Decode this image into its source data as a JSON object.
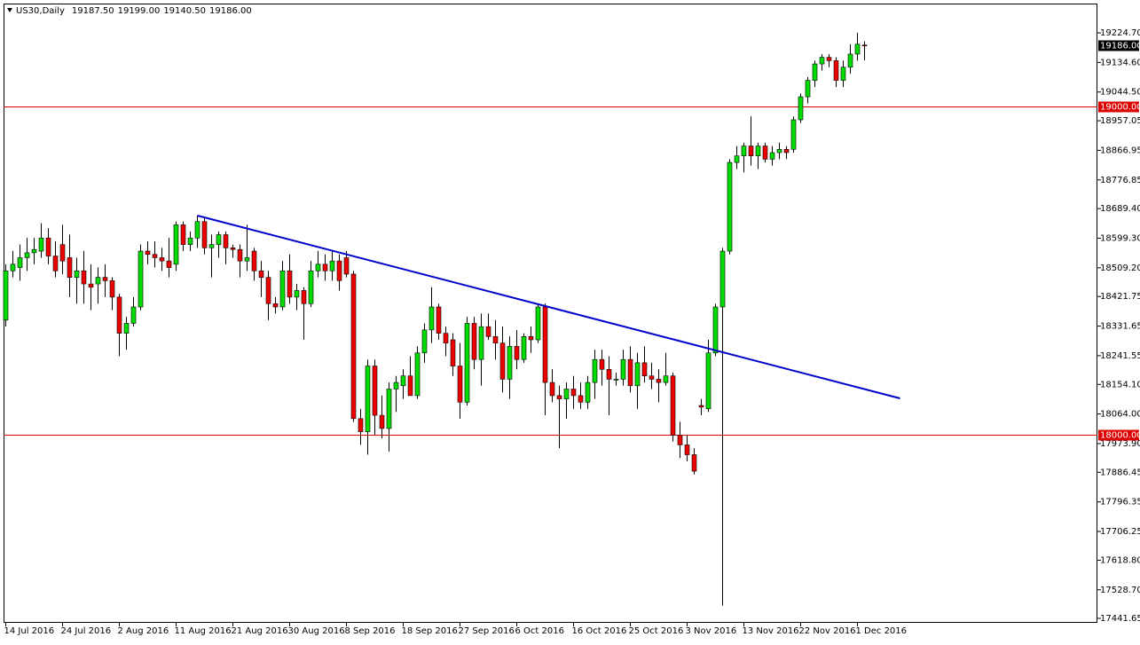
{
  "chart_data": {
    "type": "candlestick",
    "title": "US30,Daily",
    "header": {
      "values": [
        19187.5,
        19199,
        19140.5,
        19186
      ],
      "value_labels": [
        "19187.50",
        "19199.00",
        "19140.50",
        "19186.00"
      ]
    },
    "categories": [
      "14 Jul 2016",
      null,
      null,
      null,
      null,
      null,
      null,
      null,
      "24 Jul 2016",
      null,
      null,
      null,
      null,
      null,
      null,
      null,
      "2 Aug 2016",
      null,
      null,
      null,
      null,
      null,
      null,
      null,
      "11 Aug 2016",
      null,
      null,
      null,
      null,
      null,
      null,
      null,
      "21 Aug 2016",
      null,
      null,
      null,
      null,
      null,
      null,
      null,
      "30 Aug 2016",
      null,
      null,
      null,
      null,
      null,
      null,
      null,
      "8 Sep 2016",
      null,
      null,
      null,
      null,
      null,
      null,
      null,
      "18 Sep 2016",
      null,
      null,
      null,
      null,
      null,
      null,
      null,
      "27 Sep 2016",
      null,
      null,
      null,
      null,
      null,
      null,
      null,
      "6 Oct 2016",
      null,
      null,
      null,
      null,
      null,
      null,
      null,
      "16 Oct 2016",
      null,
      null,
      null,
      null,
      null,
      null,
      null,
      "25 Oct 2016",
      null,
      null,
      null,
      null,
      null,
      null,
      null,
      "3 Nov 2016",
      null,
      null,
      null,
      null,
      null,
      null,
      null,
      "13 Nov 2016",
      null,
      null,
      null,
      null,
      null,
      null,
      null,
      "22 Nov 2016",
      null,
      null,
      null,
      null,
      null,
      null,
      null,
      "1 Dec 2016",
      null
    ],
    "open": [
      18350,
      18500,
      18510,
      18540,
      18555,
      18560,
      18600,
      18545,
      18580,
      18540,
      18480,
      18500,
      18460,
      18460,
      18480,
      18470,
      18420,
      18310,
      18340,
      18390,
      18560,
      18550,
      18540,
      18530,
      18520,
      18640,
      18580,
      18600,
      18650,
      18570,
      18580,
      18610,
      18570,
      18565,
      18530,
      18560,
      18500,
      18480,
      18400,
      18390,
      18500,
      18420,
      18440,
      18400,
      18500,
      18520,
      18500,
      18530,
      18540,
      18490,
      18050,
      18010,
      18210,
      18060,
      18020,
      18140,
      18150,
      18180,
      18120,
      18250,
      18320,
      18390,
      18310,
      18290,
      18210,
      18100,
      18340,
      18230,
      18330,
      18300,
      18280,
      18170,
      18270,
      18230,
      18300,
      18290,
      18390,
      18160,
      18120,
      18110,
      18140,
      18120,
      18100,
      18160,
      18230,
      18200,
      18170,
      18170,
      18230,
      18150,
      18220,
      18180,
      18170,
      18160,
      18180,
      18000,
      17970,
      17940,
      18090,
      18080,
      18250,
      18390,
      18560,
      18830,
      18850,
      18880,
      18850,
      18880,
      18840,
      18860,
      18870,
      18870,
      18960,
      19030,
      19080,
      19130,
      19150,
      19140,
      19080,
      19120,
      19160,
      19187.5
    ],
    "high": [
      18520,
      18560,
      18580,
      18600,
      18600,
      18645,
      18630,
      18590,
      18640,
      18610,
      18540,
      18560,
      18520,
      18510,
      18520,
      18480,
      18430,
      18360,
      18420,
      18580,
      18590,
      18590,
      18570,
      18600,
      18650,
      18650,
      18620,
      18668,
      18660,
      18610,
      18620,
      18620,
      18580,
      18580,
      18640,
      18570,
      18530,
      18500,
      18420,
      18530,
      18550,
      18460,
      18450,
      18530,
      18560,
      18550,
      18560,
      18550,
      18560,
      18500,
      18080,
      18230,
      18230,
      18120,
      18160,
      18180,
      18200,
      18240,
      18270,
      18340,
      18450,
      18400,
      18330,
      18310,
      18280,
      18360,
      18360,
      18370,
      18370,
      18350,
      18330,
      18300,
      18320,
      18310,
      18330,
      18400,
      18400,
      18200,
      18150,
      18160,
      18180,
      18160,
      18180,
      18260,
      18260,
      18240,
      18190,
      18260,
      18270,
      18250,
      18270,
      18220,
      18200,
      18250,
      18190,
      18040,
      18000,
      17960,
      18110,
      18290,
      18400,
      18570,
      18840,
      18880,
      18890,
      18970,
      18890,
      18890,
      18880,
      18890,
      18880,
      18970,
      19040,
      19090,
      19140,
      19160,
      19160,
      19150,
      19140,
      19190,
      19225,
      19199
    ],
    "low": [
      18330,
      18480,
      18470,
      18500,
      18520,
      18540,
      18520,
      18480,
      18490,
      18420,
      18400,
      18400,
      18380,
      18400,
      18420,
      18380,
      18240,
      18260,
      18330,
      18380,
      18520,
      18510,
      18500,
      18480,
      18500,
      18560,
      18560,
      18570,
      18550,
      18480,
      18540,
      18520,
      18540,
      18480,
      18500,
      18470,
      18420,
      18350,
      18370,
      18380,
      18400,
      18380,
      18290,
      18390,
      18480,
      18470,
      18470,
      18440,
      18480,
      18040,
      17970,
      17940,
      18000,
      17990,
      17950,
      18070,
      18110,
      18120,
      18110,
      18220,
      18280,
      18290,
      18240,
      18180,
      18050,
      18090,
      18200,
      18150,
      18290,
      18230,
      18130,
      18110,
      18200,
      18220,
      18250,
      18280,
      18060,
      18100,
      17960,
      18050,
      18080,
      18080,
      18080,
      18110,
      18150,
      18060,
      18150,
      18150,
      18130,
      18080,
      18160,
      18140,
      18100,
      18150,
      17980,
      17930,
      17920,
      17880,
      18060,
      18070,
      18240,
      17480,
      18550,
      18810,
      18800,
      18820,
      18810,
      18830,
      18820,
      18840,
      18840,
      18860,
      18950,
      19010,
      19060,
      19110,
      19120,
      19060,
      19060,
      19100,
      19140,
      19140.5
    ],
    "close": [
      18500,
      18520,
      18540,
      18555,
      18565,
      18600,
      18545,
      18500,
      18530,
      18480,
      18500,
      18460,
      18450,
      18480,
      18470,
      18420,
      18310,
      18340,
      18390,
      18560,
      18550,
      18540,
      18530,
      18510,
      18640,
      18580,
      18600,
      18650,
      18570,
      18580,
      18610,
      18570,
      18565,
      18530,
      18540,
      18500,
      18480,
      18400,
      18390,
      18500,
      18420,
      18440,
      18400,
      18500,
      18520,
      18500,
      18530,
      18470,
      18490,
      18050,
      18010,
      18210,
      18060,
      18020,
      18140,
      18160,
      18180,
      18120,
      18250,
      18320,
      18390,
      18310,
      18280,
      18210,
      18100,
      18340,
      18230,
      18330,
      18300,
      18280,
      18170,
      18270,
      18230,
      18300,
      18290,
      18390,
      18160,
      18120,
      18110,
      18140,
      18120,
      18100,
      18160,
      18230,
      18200,
      18170,
      18170,
      18230,
      18150,
      18220,
      18180,
      18170,
      18160,
      18180,
      18000,
      17970,
      17940,
      17890,
      18085,
      18250,
      18390,
      18560,
      18830,
      18850,
      18880,
      18850,
      18880,
      18840,
      18860,
      18870,
      18860,
      18960,
      19030,
      19080,
      19130,
      19150,
      19140,
      19080,
      19120,
      19160,
      19190,
      19186
    ],
    "up_color": "#00dd00",
    "down_color": "#ee0000",
    "ylim": [
      17428.1,
      19313.9
    ],
    "yticks": [
      {
        "value": 19224.7,
        "label": "19224.70"
      },
      {
        "value": 19134.6,
        "label": "19134.60"
      },
      {
        "value": 19044.5,
        "label": "19044.50"
      },
      {
        "value": 18957.05,
        "label": "18957.05"
      },
      {
        "value": 18866.95,
        "label": "18866.95"
      },
      {
        "value": 18776.85,
        "label": "18776.85"
      },
      {
        "value": 18689.4,
        "label": "18689.40"
      },
      {
        "value": 18599.3,
        "label": "18599.30"
      },
      {
        "value": 18509.2,
        "label": "18509.20"
      },
      {
        "value": 18421.75,
        "label": "18421.75"
      },
      {
        "value": 18331.65,
        "label": "18331.65"
      },
      {
        "value": 18241.55,
        "label": "18241.55"
      },
      {
        "value": 18154.1,
        "label": "18154.10"
      },
      {
        "value": 18064,
        "label": "18064.00"
      },
      {
        "value": 17973.9,
        "label": "17973.90"
      },
      {
        "value": 17886.45,
        "label": "17886.45"
      },
      {
        "value": 17796.35,
        "label": "17796.35"
      },
      {
        "value": 17706.25,
        "label": "17706.25"
      },
      {
        "value": 17618.8,
        "label": "17618.80"
      },
      {
        "value": 17528.7,
        "label": "17528.70"
      },
      {
        "value": 17441.65,
        "label": "17441.65"
      }
    ],
    "hlines": [
      {
        "value": 19000,
        "label": "19000.00",
        "color": "#dd0000"
      },
      {
        "value": 18000,
        "label": "18000.00",
        "color": "#dd0000"
      }
    ],
    "current_price": {
      "value": 19186,
      "label": "19186.00"
    },
    "trendline": {
      "x_index": [
        27,
        126
      ],
      "y": [
        18668.2,
        18111.6
      ],
      "color": "#0000cc"
    }
  }
}
